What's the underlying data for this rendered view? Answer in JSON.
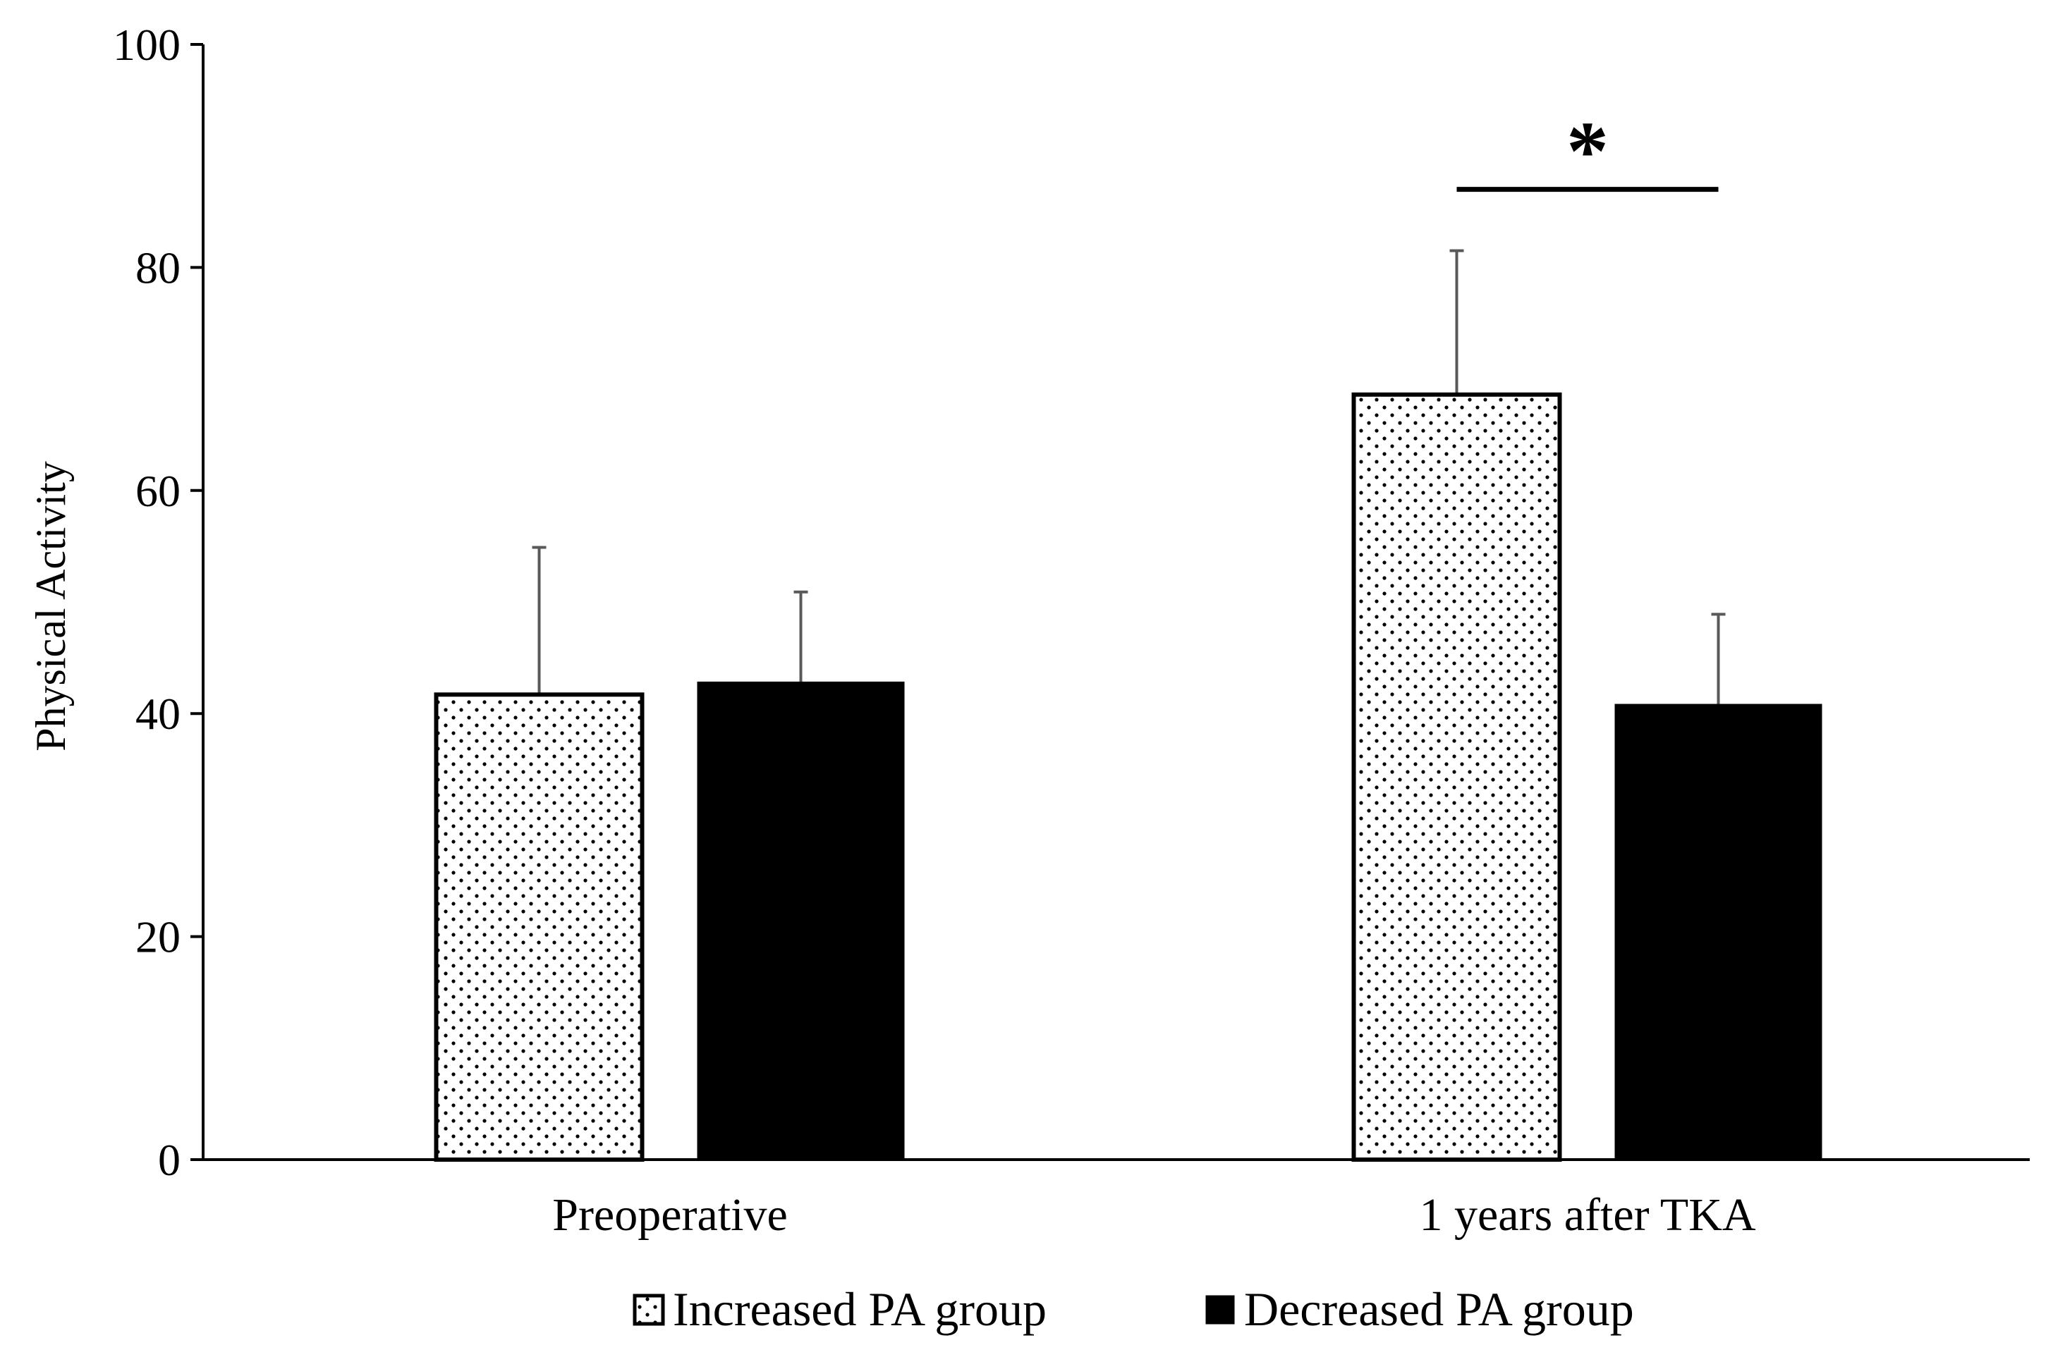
{
  "chart_data": {
    "type": "bar",
    "title": "",
    "xlabel": "",
    "ylabel": "Physical Activity",
    "ylim": [
      0,
      100
    ],
    "yticks": [
      0,
      20,
      40,
      60,
      80,
      100
    ],
    "ytick_labels": [
      "0",
      "20",
      "40",
      "60",
      "80",
      "100"
    ],
    "categories": [
      "Preoperative",
      "1 years after TKA"
    ],
    "series": [
      {
        "name": "Increased PA group",
        "pattern": "dotted",
        "fill": "#ffffff",
        "edge": "#000000",
        "values": [
          41.7,
          68.6
        ],
        "error": [
          13.2,
          12.9
        ]
      },
      {
        "name": "Decreased PA group",
        "pattern": "solid",
        "fill": "#000000",
        "edge": "#000000",
        "values": [
          42.8,
          40.8
        ],
        "error": [
          8.1,
          8.1
        ]
      }
    ],
    "annotations": [
      {
        "text": "*",
        "category_index": 1,
        "y": 87,
        "meaning": "significant difference between groups"
      }
    ],
    "legend_position": "bottom-center",
    "grid": false,
    "errorbar_color": "#595959"
  }
}
